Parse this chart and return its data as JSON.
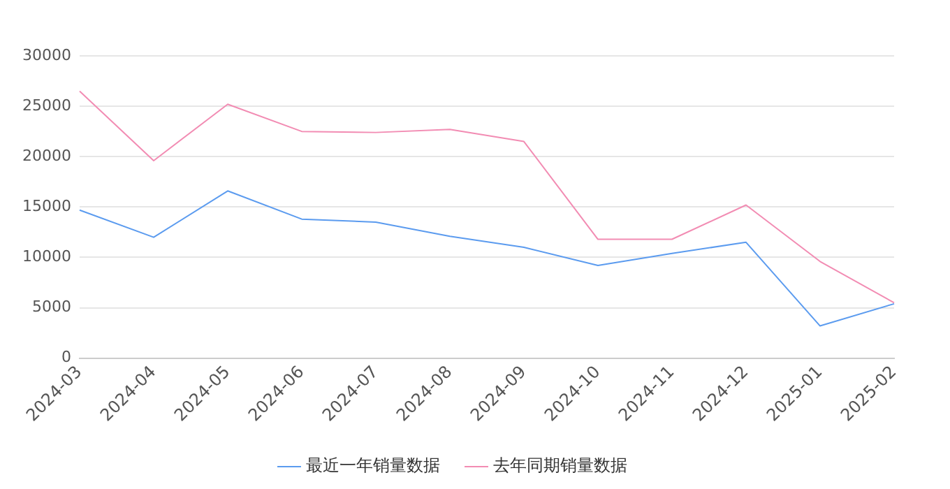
{
  "chart_data": {
    "type": "line",
    "categories": [
      "2024-03",
      "2024-04",
      "2024-05",
      "2024-06",
      "2024-07",
      "2024-08",
      "2024-09",
      "2024-10",
      "2024-11",
      "2024-12",
      "2025-01",
      "2025-02"
    ],
    "series": [
      {
        "name": "最近一年销量数据",
        "color": "#5b9bef",
        "values": [
          14700,
          12000,
          16600,
          13800,
          13500,
          12100,
          11000,
          9200,
          10400,
          11500,
          3200,
          5400
        ]
      },
      {
        "name": "去年同期销量数据",
        "color": "#f28cb3",
        "values": [
          26500,
          19600,
          25200,
          22500,
          22400,
          22700,
          21500,
          11800,
          11800,
          15200,
          9600,
          5500
        ]
      }
    ],
    "ylim": [
      0,
      30000
    ],
    "yticks": [
      0,
      5000,
      10000,
      15000,
      20000,
      25000,
      30000
    ],
    "grid": "y",
    "legend": "bottom",
    "marker": "none",
    "line_style": "solid"
  }
}
